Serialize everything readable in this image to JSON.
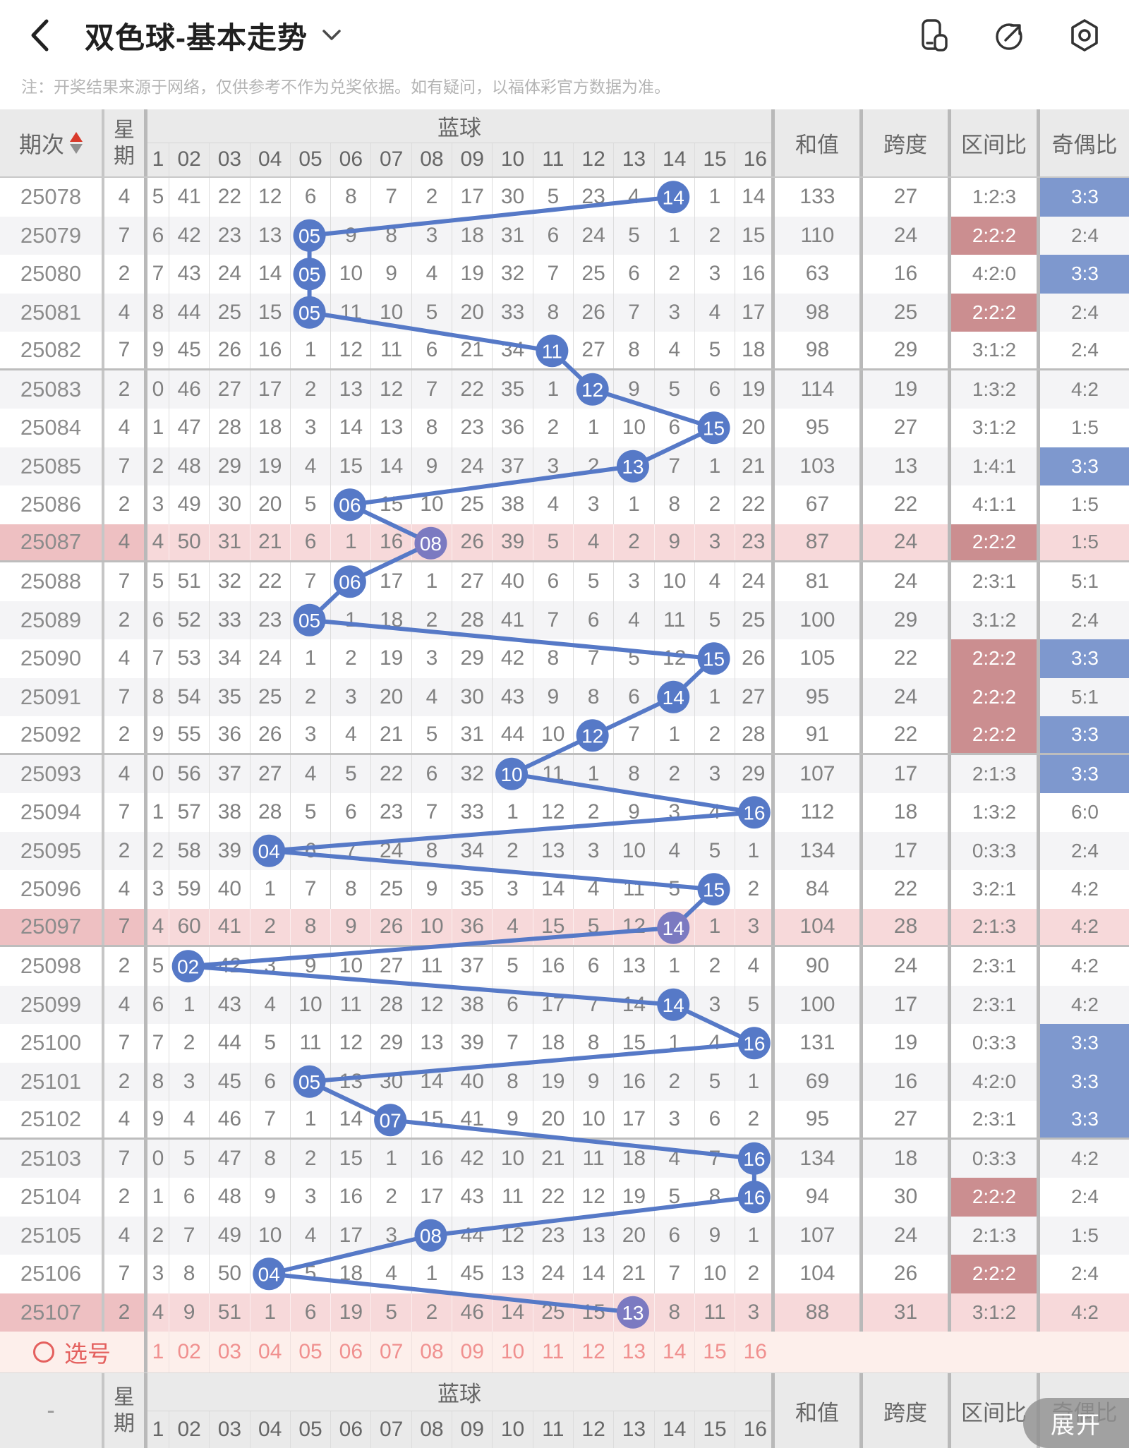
{
  "appbar": {
    "title": "双色球-基本走势"
  },
  "note": "注：开奖结果来源于网络，仅供参考不作为兑奖依据。如有疑问，以福体彩官方数据为准。",
  "table": {
    "header": {
      "period": "期次",
      "week": [
        "星",
        "期"
      ],
      "blue": "蓝球",
      "sum": "和值",
      "span": "跨度",
      "zone": "区间比",
      "odd_even": "奇偶比"
    },
    "ball_columns": [
      "1",
      "02",
      "03",
      "04",
      "05",
      "06",
      "07",
      "08",
      "09",
      "10",
      "11",
      "12",
      "13",
      "14",
      "15",
      "16"
    ],
    "rows": [
      {
        "period": "25078",
        "week": "4",
        "cells": [
          "5",
          "41",
          "22",
          "12",
          "6",
          "8",
          "7",
          "2",
          "17",
          "30",
          "5",
          "23",
          "4",
          "14",
          "1",
          "14"
        ],
        "ball": 14,
        "sum": "133",
        "span": "27",
        "zone": "1:2:3",
        "zone_hl": false,
        "oe": "3:3",
        "oe_hl": true,
        "pink": false
      },
      {
        "period": "25079",
        "week": "7",
        "cells": [
          "6",
          "42",
          "23",
          "13",
          "05",
          "9",
          "8",
          "3",
          "18",
          "31",
          "6",
          "24",
          "5",
          "1",
          "2",
          "15"
        ],
        "ball": 5,
        "sum": "110",
        "span": "24",
        "zone": "2:2:2",
        "zone_hl": true,
        "oe": "2:4",
        "oe_hl": false,
        "pink": false
      },
      {
        "period": "25080",
        "week": "2",
        "cells": [
          "7",
          "43",
          "24",
          "14",
          "05",
          "10",
          "9",
          "4",
          "19",
          "32",
          "7",
          "25",
          "6",
          "2",
          "3",
          "16"
        ],
        "ball": 5,
        "sum": "63",
        "span": "16",
        "zone": "4:2:0",
        "zone_hl": false,
        "oe": "3:3",
        "oe_hl": true,
        "pink": false
      },
      {
        "period": "25081",
        "week": "4",
        "cells": [
          "8",
          "44",
          "25",
          "15",
          "05",
          "11",
          "10",
          "5",
          "20",
          "33",
          "8",
          "26",
          "7",
          "3",
          "4",
          "17"
        ],
        "ball": 5,
        "sum": "98",
        "span": "25",
        "zone": "2:2:2",
        "zone_hl": true,
        "oe": "2:4",
        "oe_hl": false,
        "pink": false
      },
      {
        "period": "25082",
        "week": "7",
        "cells": [
          "9",
          "45",
          "26",
          "16",
          "1",
          "12",
          "11",
          "6",
          "21",
          "34",
          "11",
          "27",
          "8",
          "4",
          "5",
          "18"
        ],
        "ball": 11,
        "sum": "98",
        "span": "29",
        "zone": "3:1:2",
        "zone_hl": false,
        "oe": "2:4",
        "oe_hl": false,
        "pink": false
      },
      {
        "period": "25083",
        "week": "2",
        "cells": [
          "0",
          "46",
          "27",
          "17",
          "2",
          "13",
          "12",
          "7",
          "22",
          "35",
          "1",
          "12",
          "9",
          "5",
          "6",
          "19"
        ],
        "ball": 12,
        "sum": "114",
        "span": "19",
        "zone": "1:3:2",
        "zone_hl": false,
        "oe": "4:2",
        "oe_hl": false,
        "pink": false
      },
      {
        "period": "25084",
        "week": "4",
        "cells": [
          "1",
          "47",
          "28",
          "18",
          "3",
          "14",
          "13",
          "8",
          "23",
          "36",
          "2",
          "1",
          "10",
          "6",
          "15",
          "20"
        ],
        "ball": 15,
        "sum": "95",
        "span": "27",
        "zone": "3:1:2",
        "zone_hl": false,
        "oe": "1:5",
        "oe_hl": false,
        "pink": false
      },
      {
        "period": "25085",
        "week": "7",
        "cells": [
          "2",
          "48",
          "29",
          "19",
          "4",
          "15",
          "14",
          "9",
          "24",
          "37",
          "3",
          "2",
          "13",
          "7",
          "1",
          "21"
        ],
        "ball": 13,
        "sum": "103",
        "span": "13",
        "zone": "1:4:1",
        "zone_hl": false,
        "oe": "3:3",
        "oe_hl": true,
        "pink": false
      },
      {
        "period": "25086",
        "week": "2",
        "cells": [
          "3",
          "49",
          "30",
          "20",
          "5",
          "06",
          "15",
          "10",
          "25",
          "38",
          "4",
          "3",
          "1",
          "8",
          "2",
          "22"
        ],
        "ball": 6,
        "sum": "67",
        "span": "22",
        "zone": "4:1:1",
        "zone_hl": false,
        "oe": "1:5",
        "oe_hl": false,
        "pink": false
      },
      {
        "period": "25087",
        "week": "4",
        "cells": [
          "4",
          "50",
          "31",
          "21",
          "6",
          "1",
          "16",
          "08",
          "26",
          "39",
          "5",
          "4",
          "2",
          "9",
          "3",
          "23"
        ],
        "ball": 8,
        "sum": "87",
        "span": "24",
        "zone": "2:2:2",
        "zone_hl": true,
        "oe": "1:5",
        "oe_hl": false,
        "pink": true
      },
      {
        "period": "25088",
        "week": "7",
        "cells": [
          "5",
          "51",
          "32",
          "22",
          "7",
          "06",
          "17",
          "1",
          "27",
          "40",
          "6",
          "5",
          "3",
          "10",
          "4",
          "24"
        ],
        "ball": 6,
        "sum": "81",
        "span": "24",
        "zone": "2:3:1",
        "zone_hl": false,
        "oe": "5:1",
        "oe_hl": false,
        "pink": false
      },
      {
        "period": "25089",
        "week": "2",
        "cells": [
          "6",
          "52",
          "33",
          "23",
          "05",
          "1",
          "18",
          "2",
          "28",
          "41",
          "7",
          "6",
          "4",
          "11",
          "5",
          "25"
        ],
        "ball": 5,
        "sum": "100",
        "span": "29",
        "zone": "3:1:2",
        "zone_hl": false,
        "oe": "2:4",
        "oe_hl": false,
        "pink": false
      },
      {
        "period": "25090",
        "week": "4",
        "cells": [
          "7",
          "53",
          "34",
          "24",
          "1",
          "2",
          "19",
          "3",
          "29",
          "42",
          "8",
          "7",
          "5",
          "12",
          "15",
          "26"
        ],
        "ball": 15,
        "sum": "105",
        "span": "22",
        "zone": "2:2:2",
        "zone_hl": true,
        "oe": "3:3",
        "oe_hl": true,
        "pink": false
      },
      {
        "period": "25091",
        "week": "7",
        "cells": [
          "8",
          "54",
          "35",
          "25",
          "2",
          "3",
          "20",
          "4",
          "30",
          "43",
          "9",
          "8",
          "6",
          "14",
          "1",
          "27"
        ],
        "ball": 14,
        "sum": "95",
        "span": "24",
        "zone": "2:2:2",
        "zone_hl": true,
        "oe": "5:1",
        "oe_hl": false,
        "pink": false
      },
      {
        "period": "25092",
        "week": "2",
        "cells": [
          "9",
          "55",
          "36",
          "26",
          "3",
          "4",
          "21",
          "5",
          "31",
          "44",
          "10",
          "12",
          "7",
          "1",
          "2",
          "28"
        ],
        "ball": 12,
        "sum": "91",
        "span": "22",
        "zone": "2:2:2",
        "zone_hl": true,
        "oe": "3:3",
        "oe_hl": true,
        "pink": false
      },
      {
        "period": "25093",
        "week": "4",
        "cells": [
          "0",
          "56",
          "37",
          "27",
          "4",
          "5",
          "22",
          "6",
          "32",
          "10",
          "11",
          "1",
          "8",
          "2",
          "3",
          "29"
        ],
        "ball": 10,
        "sum": "107",
        "span": "17",
        "zone": "2:1:3",
        "zone_hl": false,
        "oe": "3:3",
        "oe_hl": true,
        "pink": false
      },
      {
        "period": "25094",
        "week": "7",
        "cells": [
          "1",
          "57",
          "38",
          "28",
          "5",
          "6",
          "23",
          "7",
          "33",
          "1",
          "12",
          "2",
          "9",
          "3",
          "4",
          "16"
        ],
        "ball": 16,
        "sum": "112",
        "span": "18",
        "zone": "1:3:2",
        "zone_hl": false,
        "oe": "6:0",
        "oe_hl": false,
        "pink": false
      },
      {
        "period": "25095",
        "week": "2",
        "cells": [
          "2",
          "58",
          "39",
          "04",
          "6",
          "7",
          "24",
          "8",
          "34",
          "2",
          "13",
          "3",
          "10",
          "4",
          "5",
          "1"
        ],
        "ball": 4,
        "sum": "134",
        "span": "17",
        "zone": "0:3:3",
        "zone_hl": false,
        "oe": "2:4",
        "oe_hl": false,
        "pink": false
      },
      {
        "period": "25096",
        "week": "4",
        "cells": [
          "3",
          "59",
          "40",
          "1",
          "7",
          "8",
          "25",
          "9",
          "35",
          "3",
          "14",
          "4",
          "11",
          "5",
          "15",
          "2"
        ],
        "ball": 15,
        "sum": "84",
        "span": "22",
        "zone": "3:2:1",
        "zone_hl": false,
        "oe": "4:2",
        "oe_hl": false,
        "pink": false
      },
      {
        "period": "25097",
        "week": "7",
        "cells": [
          "4",
          "60",
          "41",
          "2",
          "8",
          "9",
          "26",
          "10",
          "36",
          "4",
          "15",
          "5",
          "12",
          "14",
          "1",
          "3"
        ],
        "ball": 14,
        "sum": "104",
        "span": "28",
        "zone": "2:1:3",
        "zone_hl": false,
        "oe": "4:2",
        "oe_hl": false,
        "pink": true
      },
      {
        "period": "25098",
        "week": "2",
        "cells": [
          "5",
          "02",
          "42",
          "3",
          "9",
          "10",
          "27",
          "11",
          "37",
          "5",
          "16",
          "6",
          "13",
          "1",
          "2",
          "4"
        ],
        "ball": 2,
        "sum": "90",
        "span": "24",
        "zone": "2:3:1",
        "zone_hl": false,
        "oe": "4:2",
        "oe_hl": false,
        "pink": false
      },
      {
        "period": "25099",
        "week": "4",
        "cells": [
          "6",
          "1",
          "43",
          "4",
          "10",
          "11",
          "28",
          "12",
          "38",
          "6",
          "17",
          "7",
          "14",
          "14",
          "3",
          "5"
        ],
        "ball": 14,
        "sum": "100",
        "span": "17",
        "zone": "2:3:1",
        "zone_hl": false,
        "oe": "4:2",
        "oe_hl": false,
        "pink": false
      },
      {
        "period": "25100",
        "week": "7",
        "cells": [
          "7",
          "2",
          "44",
          "5",
          "11",
          "12",
          "29",
          "13",
          "39",
          "7",
          "18",
          "8",
          "15",
          "1",
          "4",
          "16"
        ],
        "ball": 16,
        "sum": "131",
        "span": "19",
        "zone": "0:3:3",
        "zone_hl": false,
        "oe": "3:3",
        "oe_hl": true,
        "pink": false
      },
      {
        "period": "25101",
        "week": "2",
        "cells": [
          "8",
          "3",
          "45",
          "6",
          "05",
          "13",
          "30",
          "14",
          "40",
          "8",
          "19",
          "9",
          "16",
          "2",
          "5",
          "1"
        ],
        "ball": 5,
        "sum": "69",
        "span": "16",
        "zone": "4:2:0",
        "zone_hl": false,
        "oe": "3:3",
        "oe_hl": true,
        "pink": false
      },
      {
        "period": "25102",
        "week": "4",
        "cells": [
          "9",
          "4",
          "46",
          "7",
          "1",
          "14",
          "07",
          "15",
          "41",
          "9",
          "20",
          "10",
          "17",
          "3",
          "6",
          "2"
        ],
        "ball": 7,
        "sum": "95",
        "span": "27",
        "zone": "2:3:1",
        "zone_hl": false,
        "oe": "3:3",
        "oe_hl": true,
        "pink": false
      },
      {
        "period": "25103",
        "week": "7",
        "cells": [
          "0",
          "5",
          "47",
          "8",
          "2",
          "15",
          "1",
          "16",
          "42",
          "10",
          "21",
          "11",
          "18",
          "4",
          "7",
          "16"
        ],
        "ball": 16,
        "sum": "134",
        "span": "18",
        "zone": "0:3:3",
        "zone_hl": false,
        "oe": "4:2",
        "oe_hl": false,
        "pink": false
      },
      {
        "period": "25104",
        "week": "2",
        "cells": [
          "1",
          "6",
          "48",
          "9",
          "3",
          "16",
          "2",
          "17",
          "43",
          "11",
          "22",
          "12",
          "19",
          "5",
          "8",
          "16"
        ],
        "ball": 16,
        "sum": "94",
        "span": "30",
        "zone": "2:2:2",
        "zone_hl": true,
        "oe": "2:4",
        "oe_hl": false,
        "pink": false
      },
      {
        "period": "25105",
        "week": "4",
        "cells": [
          "2",
          "7",
          "49",
          "10",
          "4",
          "17",
          "3",
          "08",
          "44",
          "12",
          "23",
          "13",
          "20",
          "6",
          "9",
          "1"
        ],
        "ball": 8,
        "sum": "107",
        "span": "24",
        "zone": "2:1:3",
        "zone_hl": false,
        "oe": "1:5",
        "oe_hl": false,
        "pink": false
      },
      {
        "period": "25106",
        "week": "7",
        "cells": [
          "3",
          "8",
          "50",
          "04",
          "5",
          "18",
          "4",
          "1",
          "45",
          "13",
          "24",
          "14",
          "21",
          "7",
          "10",
          "2"
        ],
        "ball": 4,
        "sum": "104",
        "span": "26",
        "zone": "2:2:2",
        "zone_hl": true,
        "oe": "2:4",
        "oe_hl": false,
        "pink": false
      },
      {
        "period": "25107",
        "week": "2",
        "cells": [
          "4",
          "9",
          "51",
          "1",
          "6",
          "19",
          "5",
          "2",
          "46",
          "14",
          "25",
          "15",
          "13",
          "8",
          "11",
          "3"
        ],
        "ball": 13,
        "sum": "88",
        "span": "31",
        "zone": "3:1:2",
        "zone_hl": false,
        "oe": "4:2",
        "oe_hl": false,
        "pink": true
      }
    ]
  },
  "pick": {
    "label": "选号"
  },
  "footer": {
    "period": "-",
    "week": [
      "星",
      "期"
    ],
    "blue": "蓝球",
    "sum": "和值",
    "span": "跨度",
    "zone": "区间比",
    "odd_even": "奇偶比"
  },
  "expand": "展开",
  "colors": {
    "accent_line": "#5679c7",
    "circle_blue": "#5679c7",
    "circle_purple": "#7b7ac1",
    "zone_highlight": "#cb8e90",
    "odd_even_highlight": "#7e98ce",
    "pink_row": "#f7d9da",
    "pink_row_head": "#eec0c2",
    "pick_red": "#e4605e"
  }
}
